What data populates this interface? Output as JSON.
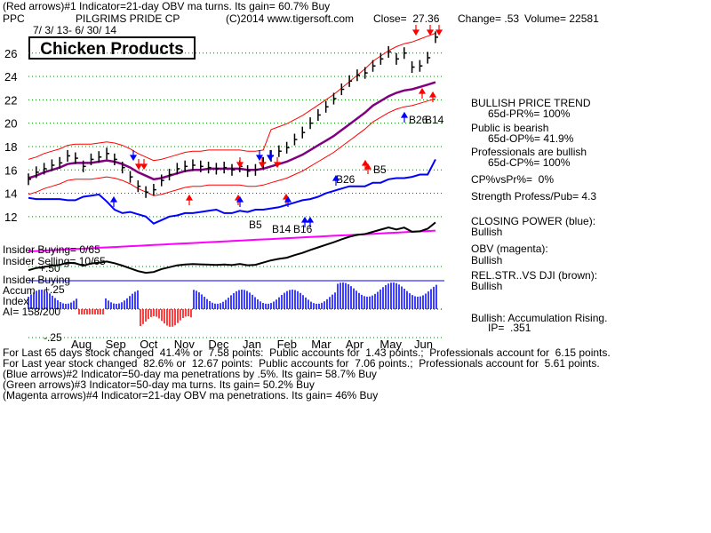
{
  "header": {
    "line1": "(Red arrows)#1 Indicator=21-day OBV ma turns. Its gain= 60.7% Buy",
    "ticker": "PPC",
    "company": "PILGRIMS PRIDE CP",
    "source": "(C)2014 www.tigersoft.com",
    "close": "Close=  27.36",
    "change": "Change= .53",
    "volume": "Volume= 22581",
    "date_range": "7/ 3/ 13- 6/ 30/ 14"
  },
  "title_box": "Chicken Products",
  "right_panel": {
    "price_trend_title": "BULLISH PRICE TREND",
    "price_trend_value": "65d-PR%= 100%",
    "public_title": "Public is bearish",
    "public_value": "65d-OP%= 41.9%",
    "pros_title": "Professionals are bullish",
    "pros_value": "65d-CP%= 100%",
    "cp_vs_pr": "CP%vsPr%=  0%",
    "strength": "Strength Profess/Pub= 4.3",
    "closing_power_title": "CLOSING POWER (blue):",
    "closing_power_value": "Bullish",
    "obv_title": "OBV (magenta):",
    "obv_value": "Bullish",
    "relstr_title": "REL.STR..VS DJI (brown):",
    "relstr_value": "Bullish",
    "accum_title": "Bullish: Accumulation Rising.",
    "accum_value": "IP=  .351"
  },
  "left_labels": {
    "insider_buying": "Insider Buying= 0/65",
    "insider_selling": "Insider Selling= 10/65",
    "insider_buying2": "Insider Buying",
    "accum": "Accum",
    "index": "Index",
    "ai": "AI= 158/200",
    "plus50": "+.50",
    "plus25": "+.25",
    "minus25": "-.25"
  },
  "footer": [
    "For Last 65 days stock changed  41.4% or  7.58 points:  Public accounts for  1.43 points.;  Professionals account for  6.15 points.",
    "For Last year stock changed  82.6% or  12.67 points:  Public accounts for  7.06 points.;  Professionals account for  5.61 points.",
    "(Blue arrows)#2 Indicator=50-day ma penetrations by .5%. Its gain= 58.7% Buy",
    "(Green arrows)#3 Indicator=50-day ma turns. Its gain= 50.2% Buy",
    "(Magenta arrows)#4 Indicator=21-day OBV ma penetrations. Its gain= 46% Buy"
  ],
  "signal_labels": [
    "B5",
    "B26",
    "B26",
    "B5",
    "B14",
    "B16",
    "B14"
  ],
  "chart_data": {
    "type": "line",
    "title": "PILGRIMS PRIDE CP",
    "x_ticks": [
      "Aug",
      "Sep",
      "Oct",
      "Nov",
      "Dec",
      "Jan",
      "Feb",
      "Mar",
      "Apr",
      "May",
      "Jun"
    ],
    "y_ticks": [
      12,
      14,
      16,
      18,
      20,
      22,
      24,
      26
    ],
    "ylim": [
      11,
      28
    ],
    "grid": true,
    "x": [
      0,
      5,
      10,
      15,
      20,
      25,
      30,
      35,
      40,
      45,
      50,
      55,
      60,
      65,
      70,
      75,
      80,
      85,
      90,
      95,
      100,
      105,
      110,
      115,
      120,
      125,
      130,
      135,
      140,
      145,
      150,
      155,
      160,
      165,
      170,
      175,
      180,
      185,
      190,
      195,
      200,
      205,
      210,
      215,
      220,
      225,
      230,
      235,
      240,
      245,
      250,
      255,
      260
    ],
    "series": [
      {
        "name": "Price",
        "values": [
          15.2,
          15.8,
          16.1,
          16.4,
          16.6,
          17.2,
          17.0,
          16.3,
          16.9,
          17.1,
          17.4,
          16.9,
          16.2,
          15.4,
          14.6,
          14.1,
          14.3,
          15.1,
          15.6,
          16.1,
          16.3,
          16.4,
          16.3,
          16.2,
          16.1,
          16.2,
          16.0,
          16.3,
          15.9,
          16.0,
          16.6,
          17.2,
          17.6,
          17.9,
          18.6,
          19.2,
          20.0,
          20.7,
          21.4,
          22.1,
          22.9,
          23.6,
          24.1,
          24.3,
          24.9,
          25.5,
          26.1,
          25.5,
          26.0,
          24.8,
          24.9,
          25.6,
          27.36
        ]
      },
      {
        "name": "50-day MA",
        "values": [
          15.3,
          15.5,
          15.8,
          16.0,
          16.2,
          16.5,
          16.6,
          16.6,
          16.6,
          16.7,
          16.8,
          16.7,
          16.5,
          16.2,
          15.8,
          15.5,
          15.2,
          15.3,
          15.5,
          15.7,
          15.9,
          16.0,
          16.0,
          16.1,
          16.1,
          16.1,
          16.1,
          16.1,
          16.0,
          16.0,
          16.1,
          16.3,
          16.5,
          16.7,
          17.0,
          17.3,
          17.7,
          18.1,
          18.5,
          18.9,
          19.4,
          19.9,
          20.4,
          20.9,
          21.5,
          21.9,
          22.3,
          22.6,
          22.8,
          22.9,
          23.1,
          23.3,
          23.5
        ]
      },
      {
        "name": "Closing Power",
        "values": [
          13.6,
          13.5,
          13.5,
          13.5,
          13.5,
          13.4,
          13.4,
          13.7,
          13.8,
          13.9,
          13.3,
          12.6,
          12.3,
          12.4,
          12.2,
          12.0,
          11.4,
          11.7,
          12.0,
          12.1,
          12.3,
          12.3,
          12.4,
          12.5,
          12.6,
          12.3,
          12.3,
          12.5,
          12.4,
          12.6,
          12.6,
          12.7,
          12.8,
          13.0,
          13.2,
          13.4,
          13.5,
          13.7,
          14.0,
          14.2,
          14.4,
          14.6,
          14.6,
          14.6,
          14.9,
          14.9,
          15.2,
          15.3,
          15.3,
          15.4,
          15.6,
          15.6,
          16.9
        ]
      }
    ]
  },
  "colors": {
    "price_bars": "#000000",
    "bands": "#ff0000",
    "ma": "#800080",
    "closing_power": "#0000ff",
    "obv": "#ff00ff",
    "rel_str": "#000000",
    "accum_pos": "#0000ff",
    "accum_neg": "#ff0000",
    "grid": "#008000",
    "buy_arrows": "#ff0000",
    "blue_arrows": "#0000ff"
  }
}
